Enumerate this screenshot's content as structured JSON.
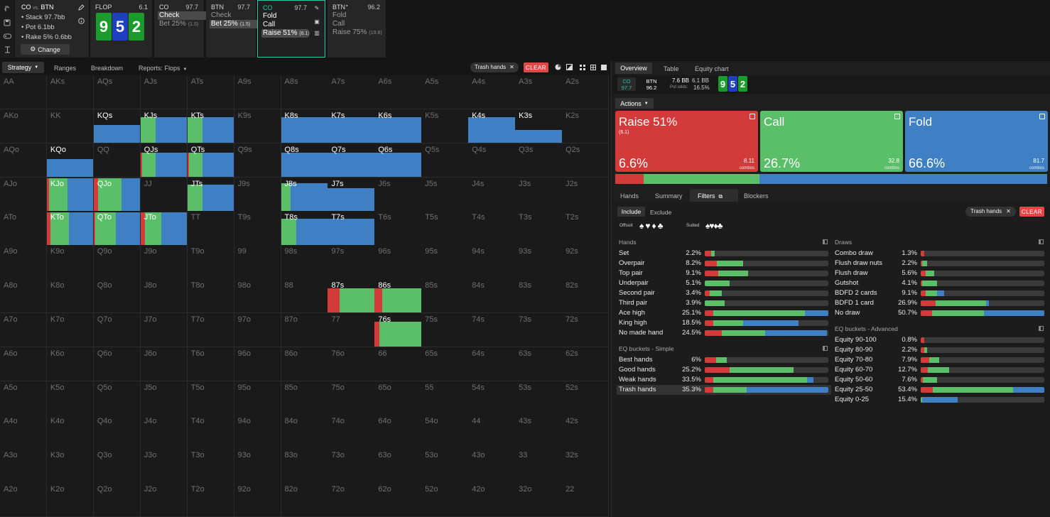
{
  "colors": {
    "raise": "#d33a3a",
    "call": "#5bbf6a",
    "fold": "#3f7fc4",
    "accent": "#28c7a8"
  },
  "setup": {
    "title": "CO",
    "vs": "vs.",
    "opp": "BTN",
    "stack": "Stack 97.7bb",
    "pot": "Pot 6.1bb",
    "rake": "Rake 5% 0.6bb",
    "change": "Change"
  },
  "flop": {
    "label": "FLOP",
    "pot": "6.1",
    "cards": [
      {
        "rank": "9",
        "suit": "c"
      },
      {
        "rank": "5",
        "suit": "d"
      },
      {
        "rank": "2",
        "suit": "c"
      }
    ]
  },
  "history": [
    {
      "pos": "CO",
      "stack": "97.7",
      "options": [
        {
          "label": "Check",
          "size": "",
          "selected": true
        },
        {
          "label": "Bet 25%",
          "size": "(1.5)",
          "selected": false
        }
      ]
    },
    {
      "pos": "BTN",
      "stack": "97.7",
      "options": [
        {
          "label": "Check",
          "size": "",
          "selected": false
        },
        {
          "label": "Bet 25%",
          "size": "(1.5)",
          "selected": true
        }
      ]
    },
    {
      "pos": "CO",
      "stack": "97.7",
      "options": [
        {
          "label": "Fold",
          "size": "",
          "selected": false
        },
        {
          "label": "Call",
          "size": "",
          "selected": false
        },
        {
          "label": "Raise 51%",
          "size": "(6.1)",
          "selected": true
        }
      ]
    },
    {
      "pos": "BTN",
      "stack": "96.2",
      "options": [
        {
          "label": "Fold",
          "size": "",
          "selected": false
        },
        {
          "label": "Call",
          "size": "",
          "selected": false
        },
        {
          "label": "Raise 75%",
          "size": "(19.8)",
          "selected": false
        }
      ]
    }
  ],
  "toolbar": {
    "tabs": [
      "Strategy",
      "Ranges",
      "Breakdown",
      "Reports: Flops"
    ],
    "filter_chip": "Trash hands",
    "clear": "CLEAR"
  },
  "matrix": [
    [
      "AA",
      "AKs",
      "AQs",
      "AJs",
      "ATs",
      "A9s",
      "A8s",
      "A7s",
      "A6s",
      "A5s",
      "A4s",
      "A3s",
      "A2s"
    ],
    [
      "AKo",
      "KK",
      "KQs",
      "KJs",
      "KTs",
      "K9s",
      "K8s",
      "K7s",
      "K6s",
      "K5s",
      "K4s",
      "K3s",
      "K2s"
    ],
    [
      "AQo",
      "KQo",
      "QQ",
      "QJs",
      "QTs",
      "Q9s",
      "Q8s",
      "Q7s",
      "Q6s",
      "Q5s",
      "Q4s",
      "Q3s",
      "Q2s"
    ],
    [
      "AJo",
      "KJo",
      "QJo",
      "JJ",
      "JTs",
      "J9s",
      "J8s",
      "J7s",
      "J6s",
      "J5s",
      "J4s",
      "J3s",
      "J2s"
    ],
    [
      "ATo",
      "KTo",
      "QTo",
      "JTo",
      "TT",
      "T9s",
      "T8s",
      "T7s",
      "T6s",
      "T5s",
      "T4s",
      "T3s",
      "T2s"
    ],
    [
      "A9o",
      "K9o",
      "Q9o",
      "J9o",
      "T9o",
      "99",
      "98s",
      "97s",
      "96s",
      "95s",
      "94s",
      "93s",
      "92s"
    ],
    [
      "A8o",
      "K8o",
      "Q8o",
      "J8o",
      "T8o",
      "98o",
      "88",
      "87s",
      "86s",
      "85s",
      "84s",
      "83s",
      "82s"
    ],
    [
      "A7o",
      "K7o",
      "Q7o",
      "J7o",
      "T7o",
      "97o",
      "87o",
      "77",
      "76s",
      "75s",
      "74s",
      "73s",
      "72s"
    ],
    [
      "A6o",
      "K6o",
      "Q6o",
      "J6o",
      "T6o",
      "96o",
      "86o",
      "76o",
      "66",
      "65s",
      "64s",
      "63s",
      "62s"
    ],
    [
      "A5o",
      "K5o",
      "Q5o",
      "J5o",
      "T5o",
      "95o",
      "85o",
      "75o",
      "65o",
      "55",
      "54s",
      "53s",
      "52s"
    ],
    [
      "A4o",
      "K4o",
      "Q4o",
      "J4o",
      "T4o",
      "94o",
      "84o",
      "74o",
      "64o",
      "54o",
      "44",
      "43s",
      "42s"
    ],
    [
      "A3o",
      "K3o",
      "Q3o",
      "J3o",
      "T3o",
      "93o",
      "83o",
      "73o",
      "63o",
      "53o",
      "43o",
      "33",
      "32s"
    ],
    [
      "A2o",
      "K2o",
      "Q2o",
      "J2o",
      "T2o",
      "92o",
      "82o",
      "72o",
      "62o",
      "52o",
      "42o",
      "32o",
      "22"
    ]
  ],
  "matrix_strategy": {
    "KQs": {
      "w": 1,
      "r": 0,
      "c": 0,
      "f": 1
    },
    "KJs": {
      "w": 1,
      "r": 0,
      "c": 0.32,
      "f": 0.68
    },
    "KTs": {
      "w": 1,
      "r": 0,
      "c": 0.32,
      "f": 0.68
    },
    "K8s": {
      "w": 1,
      "r": 0,
      "c": 0,
      "f": 1
    },
    "K7s": {
      "w": 1,
      "r": 0,
      "c": 0,
      "f": 1
    },
    "K6s": {
      "w": 1,
      "r": 0,
      "c": 0,
      "f": 1
    },
    "K4s": {
      "w": 1,
      "r": 0,
      "c": 0,
      "f": 1
    },
    "K3s": {
      "w": 1,
      "r": 0,
      "c": 0,
      "f": 1
    },
    "KQo": {
      "w": 1,
      "r": 0,
      "c": 0,
      "f": 1
    },
    "QJs": {
      "w": 1,
      "r": 0.03,
      "c": 0.3,
      "f": 0.67
    },
    "QTs": {
      "w": 1,
      "r": 0.03,
      "c": 0.3,
      "f": 0.67
    },
    "Q8s": {
      "w": 1,
      "r": 0,
      "c": 0,
      "f": 1
    },
    "Q7s": {
      "w": 1,
      "r": 0,
      "c": 0,
      "f": 1
    },
    "Q6s": {
      "w": 1,
      "r": 0,
      "c": 0,
      "f": 1
    },
    "KJo": {
      "w": 1,
      "r": 0.04,
      "c": 0.4,
      "f": 0.56
    },
    "QJo": {
      "w": 1,
      "r": 0.1,
      "c": 0.5,
      "f": 0.4
    },
    "JTs": {
      "w": 1,
      "r": 0,
      "c": 0.33,
      "f": 0.67
    },
    "J8s": {
      "w": 1,
      "r": 0,
      "c": 0.2,
      "f": 0.8
    },
    "J7s": {
      "w": 1,
      "r": 0,
      "c": 0,
      "f": 1
    },
    "KTo": {
      "w": 1,
      "r": 0.08,
      "c": 0.4,
      "f": 0.52
    },
    "QTo": {
      "w": 1,
      "r": 0.03,
      "c": 0.45,
      "f": 0.52
    },
    "JTo": {
      "w": 1,
      "r": 0.1,
      "c": 0.35,
      "f": 0.55
    },
    "T8s": {
      "w": 1,
      "r": 0,
      "c": 0.33,
      "f": 0.67
    },
    "T7s": {
      "w": 1,
      "r": 0,
      "c": 0,
      "f": 1
    },
    "87s": {
      "w": 1,
      "r": 0.25,
      "c": 0.75,
      "f": 0
    },
    "86s": {
      "w": 1,
      "r": 0.17,
      "c": 0.83,
      "f": 0
    },
    "76s": {
      "w": 1,
      "r": 0.1,
      "c": 0.9,
      "f": 0
    }
  },
  "matrix_heights": {
    "KQs": 0.55,
    "KJs": 0.8,
    "KTs": 0.8,
    "K8s": 0.8,
    "K7s": 0.8,
    "K6s": 0.8,
    "K4s": 0.8,
    "K3s": 0.4,
    "KQo": 0.55,
    "QJs": 0.75,
    "QTs": 0.75,
    "Q8s": 0.75,
    "Q7s": 0.75,
    "Q6s": 0.75,
    "KJo": 1,
    "QJo": 1,
    "JTs": 0.8,
    "J8s": 0.85,
    "J7s": 0.7,
    "KTo": 1,
    "QTo": 1,
    "JTo": 1,
    "T8s": 0.8,
    "T7s": 0.8,
    "87s": 0.75,
    "86s": 0.75,
    "76s": 0.78
  },
  "right": {
    "tabs": [
      "Overview",
      "Table",
      "Equity chart"
    ],
    "info": {
      "p1": "CO",
      "s1": "97.7",
      "p2": "BTN",
      "s2": "96.2",
      "bb": "7.6 BB",
      "potval": "6.1 BB",
      "potodds_label": "Pot odds:",
      "potodds": "16.5%"
    },
    "actions_label": "Actions",
    "tiles": [
      {
        "name": "Raise 51%",
        "sub": "(6.1)",
        "pct": "6.6%",
        "combos": "8.11",
        "combos_label": "combos"
      },
      {
        "name": "Call",
        "sub": "",
        "pct": "26.7%",
        "combos": "32.8",
        "combos_label": "combos"
      },
      {
        "name": "Fold",
        "sub": "",
        "pct": "66.6%",
        "combos": "81.7",
        "combos_label": "combos"
      }
    ],
    "freq": {
      "raise": 0.066,
      "call": 0.267,
      "fold": 0.666
    },
    "subtabs": [
      "Hands",
      "Summary",
      "Filters",
      "Blockers"
    ],
    "include": "Include",
    "exclude": "Exclude",
    "filter_chip": "Trash hands",
    "clear": "CLEAR",
    "offsuit": "Offsuit",
    "suited": "Suited",
    "hands_title": "Hands",
    "hands": [
      {
        "name": "Set",
        "pct": "2.2%",
        "r": 0.05,
        "c": 0.03,
        "f": 0
      },
      {
        "name": "Overpair",
        "pct": "8.2%",
        "r": 0.1,
        "c": 0.21,
        "f": 0
      },
      {
        "name": "Top pair",
        "pct": "9.1%",
        "r": 0.11,
        "c": 0.24,
        "f": 0
      },
      {
        "name": "Underpair",
        "pct": "5.1%",
        "r": 0,
        "c": 0.2,
        "f": 0
      },
      {
        "name": "Second pair",
        "pct": "3.4%",
        "r": 0.04,
        "c": 0.1,
        "f": 0
      },
      {
        "name": "Third pair",
        "pct": "3.9%",
        "r": 0,
        "c": 0.16,
        "f": 0
      },
      {
        "name": "Ace high",
        "pct": "25.1%",
        "r": 0.07,
        "c": 0.74,
        "f": 0.19
      },
      {
        "name": "King high",
        "pct": "18.5%",
        "r": 0.07,
        "c": 0.24,
        "f": 0.45
      },
      {
        "name": "No made hand",
        "pct": "24.5%",
        "r": 0.14,
        "c": 0.35,
        "f": 0.5
      }
    ],
    "eqs_title": "EQ buckets - Simple",
    "eqs": [
      {
        "name": "Best hands",
        "pct": "6%",
        "r": 0.09,
        "c": 0.09,
        "f": 0
      },
      {
        "name": "Good hands",
        "pct": "25.2%",
        "r": 0.2,
        "c": 0.52,
        "f": 0
      },
      {
        "name": "Weak hands",
        "pct": "33.5%",
        "r": 0.07,
        "c": 0.76,
        "f": 0.05
      },
      {
        "name": "Trash hands",
        "pct": "35.3%",
        "r": 0.07,
        "c": 0.27,
        "f": 0.66,
        "selected": true
      }
    ],
    "draws_title": "Draws",
    "draws": [
      {
        "name": "Combo draw",
        "pct": "1.3%",
        "r": 0.03,
        "c": 0,
        "f": 0
      },
      {
        "name": "Flush draw nuts",
        "pct": "2.2%",
        "r": 0.01,
        "c": 0.04,
        "f": 0
      },
      {
        "name": "Flush draw",
        "pct": "5.6%",
        "r": 0.04,
        "c": 0.07,
        "f": 0
      },
      {
        "name": "Gutshot",
        "pct": "4.1%",
        "r": 0.01,
        "c": 0.12,
        "f": 0
      },
      {
        "name": "BDFD 2 cards",
        "pct": "9.1%",
        "r": 0.04,
        "c": 0.09,
        "f": 0.06
      },
      {
        "name": "BDFD 1 card",
        "pct": "26.9%",
        "r": 0.12,
        "c": 0.41,
        "f": 0.02
      },
      {
        "name": "No draw",
        "pct": "50.7%",
        "r": 0.09,
        "c": 0.42,
        "f": 0.49
      }
    ],
    "eqa_title": "EQ buckets - Advanced",
    "eqa": [
      {
        "name": "Equity 90-100",
        "pct": "0.8%",
        "r": 0.03,
        "c": 0,
        "f": 0
      },
      {
        "name": "Equity 80-90",
        "pct": "2.2%",
        "r": 0.03,
        "c": 0.02,
        "f": 0
      },
      {
        "name": "Equity 70-80",
        "pct": "7.9%",
        "r": 0.07,
        "c": 0.08,
        "f": 0
      },
      {
        "name": "Equity 60-70",
        "pct": "12.7%",
        "r": 0.06,
        "c": 0.17,
        "f": 0
      },
      {
        "name": "Equity 50-60",
        "pct": "7.6%",
        "r": 0.02,
        "c": 0.11,
        "f": 0
      },
      {
        "name": "Equity 25-50",
        "pct": "53.4%",
        "r": 0.1,
        "c": 0.65,
        "f": 0.25
      },
      {
        "name": "Equity 0-25",
        "pct": "15.4%",
        "r": 0,
        "c": 0.01,
        "f": 0.29
      }
    ]
  }
}
